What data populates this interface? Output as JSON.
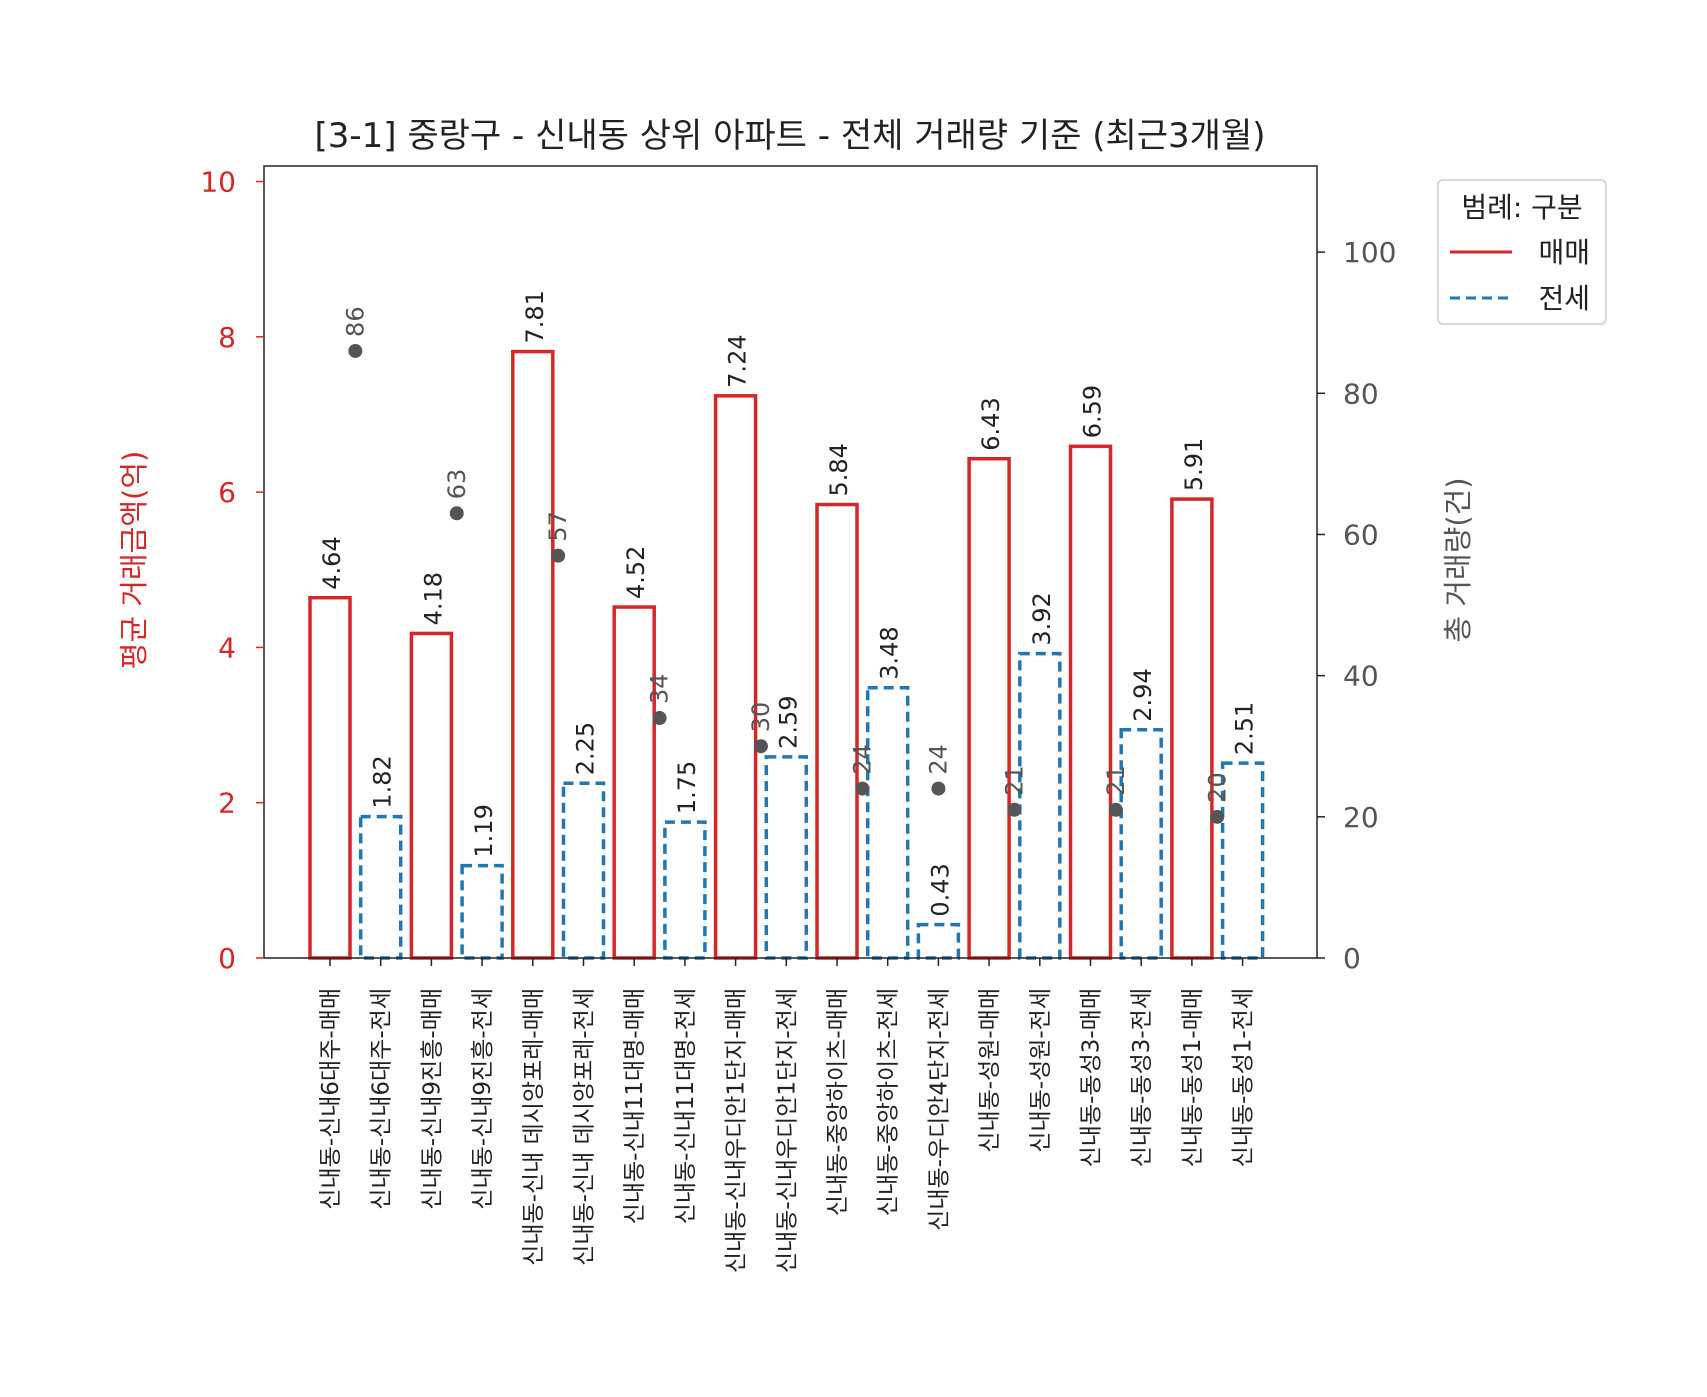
{
  "chart_data": {
    "type": "bar",
    "title": "[3-1] 중랑구 - 신내동 상위 아파트 - 전체 거래량 기준 (최근3개월)",
    "y_left_label": "평균 거래금액(억)",
    "y_right_label": "총 거래량(건)",
    "y_left_lim": [
      0,
      10.2
    ],
    "y_left_ticks": [
      0,
      2,
      4,
      6,
      8,
      10
    ],
    "y_right_lim": [
      0,
      112.2
    ],
    "y_right_ticks": [
      0,
      20,
      40,
      60,
      80,
      100
    ],
    "legend": {
      "title": "범례: 구분",
      "position": "outside-top-right",
      "entries": [
        {
          "label": "매매",
          "color": "#d62728",
          "dash": "solid"
        },
        {
          "label": "전세",
          "color": "#1f77b4",
          "dash": "dashed"
        }
      ]
    },
    "colors": {
      "sale": "#d62728",
      "jeonse": "#1f77b4",
      "volume_marker": "#555555",
      "left_axis": "#d62728",
      "right_axis": "#555555"
    },
    "categories": [
      "신내동-신내6대주-매매",
      "신내동-신내6대주-전세",
      "신내동-신내9진흥-매매",
      "신내동-신내9진흥-전세",
      "신내동-신내 데시앙포레-매매",
      "신내동-신내 데시앙포레-전세",
      "신내동-신내11대명-매매",
      "신내동-신내11대명-전세",
      "신내동-신내우디안1단지-매매",
      "신내동-신내우디안1단지-전세",
      "신내동-중앙하이츠-매매",
      "신내동-중앙하이츠-전세",
      "신내동-우디안4단지-전세",
      "신내동-성원-매매",
      "신내동-성원-전세",
      "신내동-동성3-매매",
      "신내동-동성3-전세",
      "신내동-동성1-매매",
      "신내동-동성1-전세"
    ],
    "series": [
      {
        "name": "평균 거래금액",
        "axis": "left",
        "values": [
          4.64,
          1.82,
          4.18,
          1.19,
          7.81,
          2.25,
          4.52,
          1.75,
          7.24,
          2.59,
          5.84,
          3.48,
          0.43,
          6.43,
          3.92,
          6.59,
          2.94,
          5.91,
          2.51
        ],
        "labels": [
          "4.64",
          "1.82",
          "4.18",
          "1.19",
          "7.81",
          "2.25",
          "4.52",
          "1.75",
          "7.24",
          "2.59",
          "5.84",
          "3.48",
          "0.43",
          "6.43",
          "3.92",
          "6.59",
          "2.94",
          "5.91",
          "2.51"
        ],
        "kinds": [
          "매매",
          "전세",
          "매매",
          "전세",
          "매매",
          "전세",
          "매매",
          "전세",
          "매매",
          "전세",
          "매매",
          "전세",
          "전세",
          "매매",
          "전세",
          "매매",
          "전세",
          "매매",
          "전세"
        ]
      },
      {
        "name": "총 거래량",
        "axis": "right",
        "type": "scatter",
        "x_positions": [
          0.5,
          2.5,
          4.5,
          6.5,
          8.5,
          10.5,
          12,
          13.5,
          15.5,
          17.5
        ],
        "values": [
          86,
          63,
          57,
          34,
          30,
          24,
          24,
          21,
          21,
          20
        ],
        "labels": [
          "86",
          "63",
          "57",
          "34",
          "30",
          "24",
          "24",
          "21",
          "21",
          "20"
        ]
      }
    ]
  }
}
